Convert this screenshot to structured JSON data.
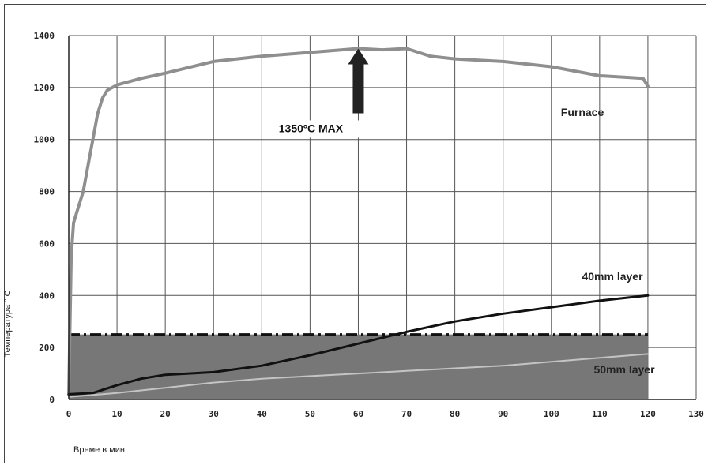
{
  "chart_data": {
    "type": "line",
    "title": "",
    "xlabel": "Време в мин.",
    "ylabel": "Температура ° С",
    "xlim": [
      0,
      130
    ],
    "ylim": [
      0,
      1400
    ],
    "xticks": [
      "0",
      "10",
      "20",
      "30",
      "40",
      "50",
      "60",
      "70",
      "80",
      "90",
      "100",
      "110",
      "120",
      "130"
    ],
    "yticks": [
      "0",
      "200",
      "400",
      "600",
      "800",
      "1000",
      "1200",
      "1400"
    ],
    "grid": true,
    "shaded_region": {
      "y_min": 0,
      "y_max": 250,
      "x_min": 0,
      "x_max": 120,
      "color": "#777777"
    },
    "threshold_line": {
      "y": 250,
      "x_min": 0,
      "x_max": 120,
      "style": "dash-dot",
      "color": "#111111"
    },
    "series": [
      {
        "name": "Furnace",
        "color": "#8f8f8f",
        "points": [
          [
            0,
            20
          ],
          [
            0.5,
            550
          ],
          [
            1,
            680
          ],
          [
            2,
            740
          ],
          [
            3,
            800
          ],
          [
            4,
            900
          ],
          [
            5,
            1000
          ],
          [
            6,
            1100
          ],
          [
            7,
            1160
          ],
          [
            8,
            1190
          ],
          [
            10,
            1210
          ],
          [
            15,
            1235
          ],
          [
            20,
            1255
          ],
          [
            30,
            1300
          ],
          [
            40,
            1320
          ],
          [
            50,
            1335
          ],
          [
            60,
            1350
          ],
          [
            65,
            1345
          ],
          [
            70,
            1350
          ],
          [
            75,
            1320
          ],
          [
            80,
            1310
          ],
          [
            90,
            1300
          ],
          [
            100,
            1280
          ],
          [
            110,
            1245
          ],
          [
            115,
            1240
          ],
          [
            119,
            1235
          ],
          [
            120,
            1205
          ]
        ]
      },
      {
        "name": "40mm layer",
        "color": "#111111",
        "points": [
          [
            0,
            20
          ],
          [
            5,
            25
          ],
          [
            10,
            55
          ],
          [
            15,
            80
          ],
          [
            20,
            95
          ],
          [
            30,
            105
          ],
          [
            40,
            130
          ],
          [
            50,
            170
          ],
          [
            60,
            215
          ],
          [
            70,
            260
          ],
          [
            80,
            300
          ],
          [
            90,
            330
          ],
          [
            100,
            355
          ],
          [
            110,
            380
          ],
          [
            120,
            400
          ]
        ]
      },
      {
        "name": "50mm layer",
        "color": "#c4c4c4",
        "points": [
          [
            0,
            10
          ],
          [
            10,
            25
          ],
          [
            20,
            45
          ],
          [
            30,
            65
          ],
          [
            40,
            80
          ],
          [
            50,
            90
          ],
          [
            60,
            100
          ],
          [
            70,
            110
          ],
          [
            80,
            120
          ],
          [
            90,
            130
          ],
          [
            100,
            145
          ],
          [
            110,
            160
          ],
          [
            120,
            175
          ]
        ]
      }
    ],
    "annotations": [
      {
        "text": "1350ºC MAX",
        "x": 60,
        "y": 1350
      }
    ]
  }
}
